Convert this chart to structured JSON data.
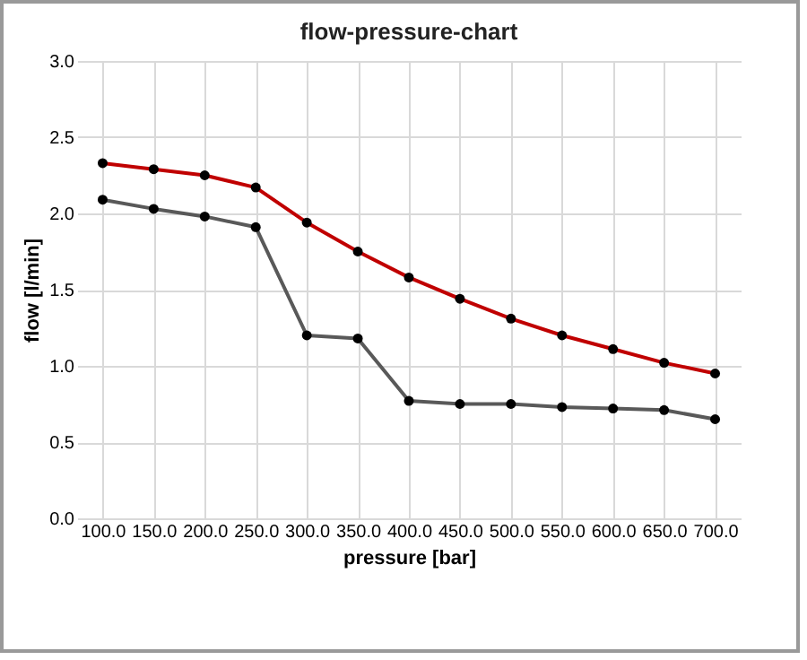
{
  "chart_data": {
    "type": "line",
    "title": "flow-pressure-chart",
    "xlabel": "pressure [bar]",
    "ylabel": "flow [l/min]",
    "categories": [
      "100.0",
      "150.0",
      "200.0",
      "250.0",
      "300.0",
      "350.0",
      "400.0",
      "450.0",
      "500.0",
      "550.0",
      "600.0",
      "650.0",
      "700.0"
    ],
    "series": [
      {
        "color": "#c00000",
        "values": [
          2.33,
          2.29,
          2.25,
          2.17,
          1.94,
          1.75,
          1.58,
          1.44,
          1.31,
          1.2,
          1.11,
          1.02,
          0.95
        ]
      },
      {
        "color": "#595959",
        "values": [
          2.09,
          2.03,
          1.98,
          1.91,
          1.2,
          1.18,
          0.77,
          0.75,
          0.75,
          0.73,
          0.72,
          0.71,
          0.65
        ]
      }
    ],
    "ylim": [
      0,
      3
    ],
    "yticks": [
      {
        "value": 0,
        "label": "0.0"
      },
      {
        "value": 0.5,
        "label": "0.5"
      },
      {
        "value": 1,
        "label": "1.0"
      },
      {
        "value": 1.5,
        "label": "1.5"
      },
      {
        "value": 2,
        "label": "2.0"
      },
      {
        "value": 2.5,
        "label": "2.5"
      },
      {
        "value": 3,
        "label": "3.0"
      }
    ],
    "grid": true,
    "marker": "circle",
    "line_style": "solid"
  }
}
